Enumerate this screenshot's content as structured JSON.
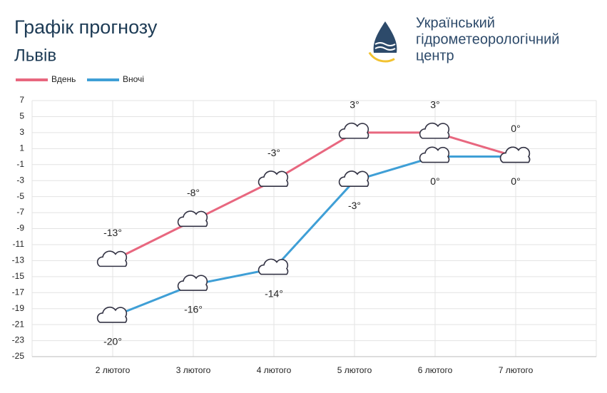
{
  "chart_data": {
    "type": "line",
    "title": "Графік прогнозу",
    "subtitle": "Львів",
    "brand": [
      "Український",
      "гідрометеорологічний",
      "центр"
    ],
    "categories": [
      null,
      "2 лютого",
      "3 лютого",
      "4 лютого",
      "5 лютого",
      "6 лютого",
      "7 лютого",
      null
    ],
    "series": [
      {
        "name": "Вдень",
        "color": "#e8677f",
        "values": [
          null,
          -13,
          -8,
          -3,
          3,
          3,
          0,
          null
        ],
        "value_labels": [
          null,
          "-13°",
          "-8°",
          "-3°",
          "3°",
          "3°",
          "0°",
          null
        ]
      },
      {
        "name": "Вночі",
        "color": "#3f9fd6",
        "values": [
          null,
          -20,
          -16,
          -14,
          -3,
          0,
          0,
          null
        ],
        "value_labels": [
          null,
          "-20°",
          "-16°",
          "-14°",
          "-3°",
          "0°",
          "0°",
          null
        ]
      }
    ],
    "ylim": [
      -25,
      7
    ],
    "yticks": [
      7,
      5,
      3,
      1,
      -1,
      -3,
      -5,
      -7,
      -9,
      -11,
      -13,
      -15,
      -17,
      -19,
      -21,
      -23,
      -25
    ],
    "grid": true,
    "legend": "top-left"
  }
}
